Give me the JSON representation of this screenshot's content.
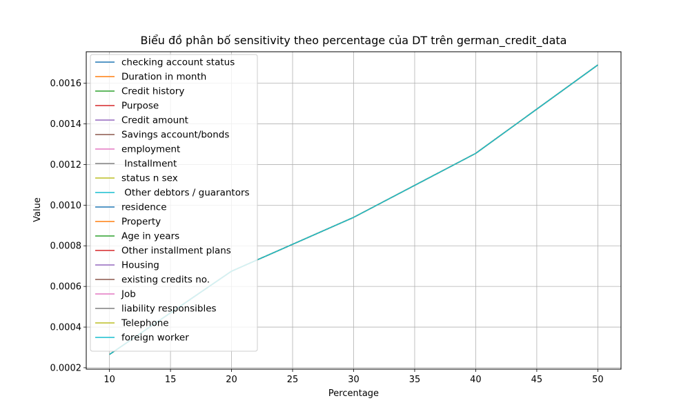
{
  "chart_data": {
    "type": "line",
    "title": "Biểu đồ phân bố sensitivity theo percentage của DT trên german_credit_data",
    "xlabel": "Percentage",
    "ylabel": "Value",
    "xlim": [
      8.1,
      51.9
    ],
    "ylim": [
      0.000193,
      0.001755
    ],
    "xticks": [
      10,
      15,
      20,
      25,
      30,
      35,
      40,
      45,
      50
    ],
    "xtick_labels": [
      "10",
      "15",
      "20",
      "25",
      "30",
      "35",
      "40",
      "45",
      "50"
    ],
    "yticks": [
      0.0002,
      0.0004,
      0.0006,
      0.0008,
      0.001,
      0.0012,
      0.0014,
      0.0016
    ],
    "ytick_labels": [
      "0.0002",
      "0.0004",
      "0.0006",
      "0.0008",
      "0.0010",
      "0.0012",
      "0.0014",
      "0.0016"
    ],
    "grid": true,
    "legend_position": "upper-left",
    "x": [
      10,
      20,
      30,
      40,
      50
    ],
    "series": [
      {
        "name": "checking account status",
        "color": "#1f77b4",
        "values": [
          0.000265,
          0.000675,
          0.00094,
          0.001255,
          0.00169
        ]
      },
      {
        "name": "Duration in month",
        "color": "#ff7f0e",
        "values": [
          0.000265,
          0.000675,
          0.00094,
          0.001255,
          0.00169
        ]
      },
      {
        "name": "Credit history",
        "color": "#2ca02c",
        "values": [
          0.000265,
          0.000675,
          0.00094,
          0.001255,
          0.00169
        ]
      },
      {
        "name": "Purpose",
        "color": "#d62728",
        "values": [
          0.000265,
          0.000675,
          0.00094,
          0.001255,
          0.00169
        ]
      },
      {
        "name": "Credit amount",
        "color": "#9467bd",
        "values": [
          0.000265,
          0.000675,
          0.00094,
          0.001255,
          0.00169
        ]
      },
      {
        "name": "Savings account/bonds",
        "color": "#8c564b",
        "values": [
          0.000265,
          0.000675,
          0.00094,
          0.001255,
          0.00169
        ]
      },
      {
        "name": "employment",
        "color": "#e377c2",
        "values": [
          0.000265,
          0.000675,
          0.00094,
          0.001255,
          0.00169
        ]
      },
      {
        "name": " Installment",
        "color": "#7f7f7f",
        "values": [
          0.000265,
          0.000675,
          0.00094,
          0.001255,
          0.00169
        ]
      },
      {
        "name": "status n sex",
        "color": "#bcbd22",
        "values": [
          0.000265,
          0.000675,
          0.00094,
          0.001255,
          0.00169
        ]
      },
      {
        "name": " Other debtors / guarantors",
        "color": "#17becf",
        "values": [
          0.000265,
          0.000675,
          0.00094,
          0.001255,
          0.00169
        ]
      },
      {
        "name": "residence",
        "color": "#1f77b4",
        "values": [
          0.000265,
          0.000675,
          0.00094,
          0.001255,
          0.00169
        ]
      },
      {
        "name": "Property",
        "color": "#ff7f0e",
        "values": [
          0.000265,
          0.000675,
          0.00094,
          0.001255,
          0.00169
        ]
      },
      {
        "name": "Age in years",
        "color": "#2ca02c",
        "values": [
          0.000265,
          0.000675,
          0.00094,
          0.001255,
          0.00169
        ]
      },
      {
        "name": "Other installment plans",
        "color": "#d62728",
        "values": [
          0.000265,
          0.000675,
          0.00094,
          0.001255,
          0.00169
        ]
      },
      {
        "name": "Housing",
        "color": "#9467bd",
        "values": [
          0.000265,
          0.000675,
          0.00094,
          0.001255,
          0.00169
        ]
      },
      {
        "name": "existing credits no.",
        "color": "#8c564b",
        "values": [
          0.000265,
          0.000675,
          0.00094,
          0.001255,
          0.00169
        ]
      },
      {
        "name": "Job",
        "color": "#e377c2",
        "values": [
          0.000265,
          0.000675,
          0.00094,
          0.001255,
          0.00169
        ]
      },
      {
        "name": "liability responsibles",
        "color": "#7f7f7f",
        "values": [
          0.000265,
          0.000675,
          0.00094,
          0.001255,
          0.00169
        ]
      },
      {
        "name": "Telephone",
        "color": "#bcbd22",
        "values": [
          0.000265,
          0.000675,
          0.00094,
          0.001255,
          0.00169
        ]
      },
      {
        "name": "foreign worker",
        "color": "#17becf",
        "values": [
          0.000265,
          0.000675,
          0.00094,
          0.001255,
          0.00169
        ]
      }
    ]
  }
}
